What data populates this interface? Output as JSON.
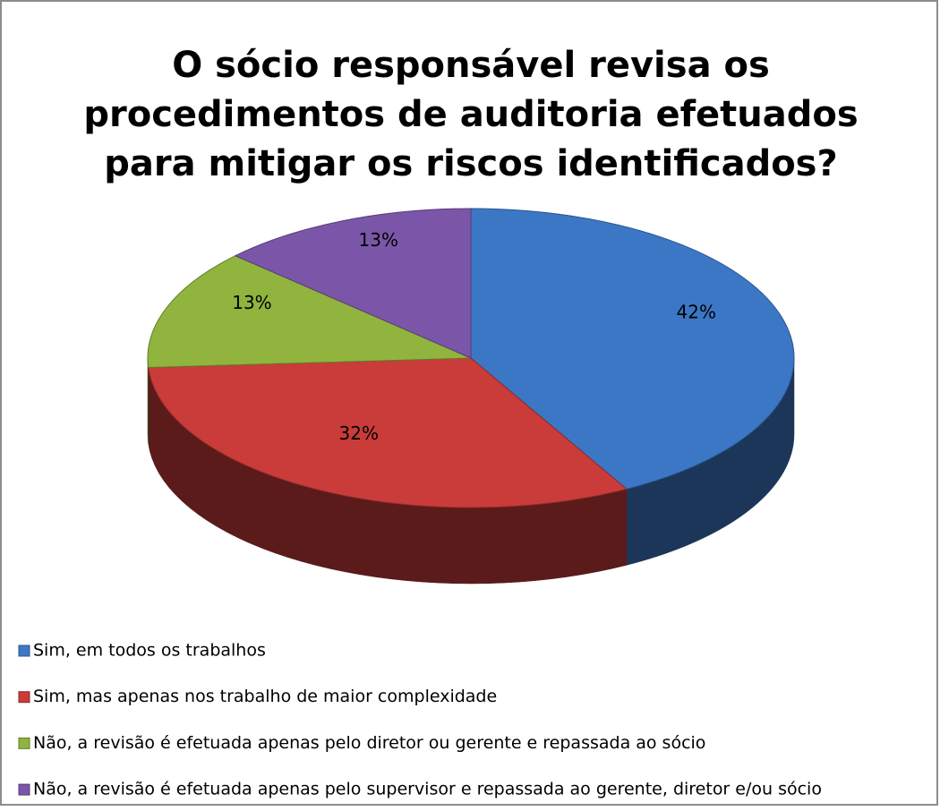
{
  "chart_data": {
    "type": "pie3d",
    "title": [
      "O sócio responsável revisa os",
      "procedimentos de auditoria efetuados",
      "para mitigar os riscos identificados?"
    ],
    "categories": [
      "Sim, em todos os trabalhos",
      "Sim, mas apenas nos trabalho de maior complexidade",
      "Não, a revisão é efetuada apenas pelo diretor ou gerente e repassada ao sócio",
      "Não, a revisão é efetuada apenas pelo supervisor e repassada ao gerente, diretor e/ou sócio"
    ],
    "values": [
      42,
      32,
      13,
      13
    ],
    "value_labels": [
      "42%",
      "32%",
      "13%",
      "13%"
    ],
    "colors": [
      "#3c77c6",
      "#c93c3a",
      "#90b43e",
      "#7b56a8"
    ],
    "legend": "bottom"
  }
}
